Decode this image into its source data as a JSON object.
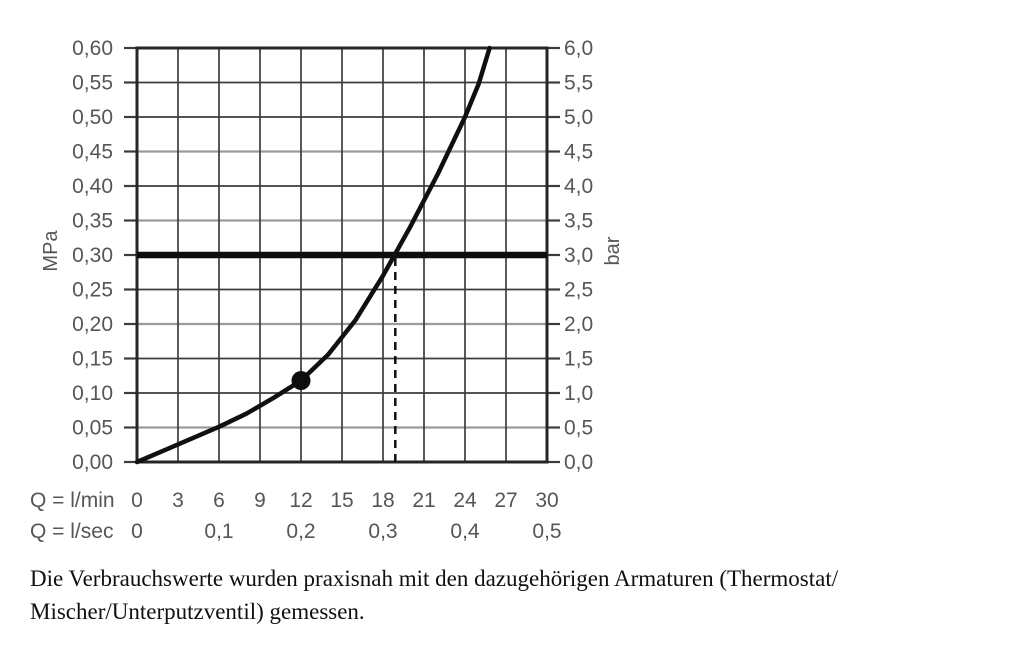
{
  "chart_data": {
    "type": "line",
    "grid": "on",
    "y_axis_left": {
      "unit": "MPa",
      "min": 0,
      "max": 0.6,
      "step": 0.05,
      "tick_labels": [
        "0,00",
        "0,05",
        "0,10",
        "0,15",
        "0,20",
        "0,25",
        "0,30",
        "0,35",
        "0,40",
        "0,45",
        "0,50",
        "0,55",
        "0,60"
      ]
    },
    "y_axis_right": {
      "unit": "bar",
      "min": 0,
      "max": 6.0,
      "step": 0.5,
      "tick_labels": [
        "0,0",
        "0,5",
        "1,0",
        "1,5",
        "2,0",
        "2,5",
        "3,0",
        "3,5",
        "4,0",
        "4,5",
        "5,0",
        "5,5",
        "6,0"
      ]
    },
    "x_axis_lmin": {
      "label": "Q = l/min",
      "min": 0,
      "max": 30,
      "step": 3,
      "tick_labels": [
        "0",
        "3",
        "6",
        "9",
        "12",
        "15",
        "18",
        "21",
        "24",
        "27",
        "30"
      ]
    },
    "x_axis_lsec": {
      "label": "Q = l/sec",
      "ticks": [
        {
          "label": "0",
          "q_lmin": 0
        },
        {
          "label": "0,1",
          "q_lmin": 6
        },
        {
          "label": "0,2",
          "q_lmin": 12
        },
        {
          "label": "0,3",
          "q_lmin": 18
        },
        {
          "label": "0,4",
          "q_lmin": 24
        },
        {
          "label": "0,5",
          "q_lmin": 30
        }
      ]
    },
    "curve_points_q_mpa": [
      [
        0,
        0
      ],
      [
        2,
        0.017
      ],
      [
        4,
        0.034
      ],
      [
        6,
        0.051
      ],
      [
        8,
        0.07
      ],
      [
        10,
        0.093
      ],
      [
        12,
        0.118
      ],
      [
        14,
        0.156
      ],
      [
        16,
        0.206
      ],
      [
        18,
        0.27
      ],
      [
        20,
        0.341
      ],
      [
        22,
        0.417
      ],
      [
        24,
        0.5
      ],
      [
        25,
        0.548
      ],
      [
        25.8,
        0.6
      ]
    ],
    "operating_point_q_mpa": [
      12,
      0.118
    ],
    "reference_pressure_mpa": 0.3,
    "dashed_flow_q_lmin": 18.9,
    "light_gridline_rows_mpa": [
      0.05,
      0.2,
      0.35,
      0.45
    ],
    "colors": {
      "grid": "#3c3c3c",
      "grid_light": "#9a9a9a",
      "border": "#262626",
      "curve": "#101010",
      "reference_line": "#0d0d0d",
      "tick_label": "#565656",
      "background": "#ffffff"
    }
  },
  "caption": {
    "line1": "Die Verbrauchswerte wurden praxisnah mit den dazugehörigen Armaturen (Thermostat/",
    "line2": "Mischer/Unterputzventil) gemessen."
  }
}
